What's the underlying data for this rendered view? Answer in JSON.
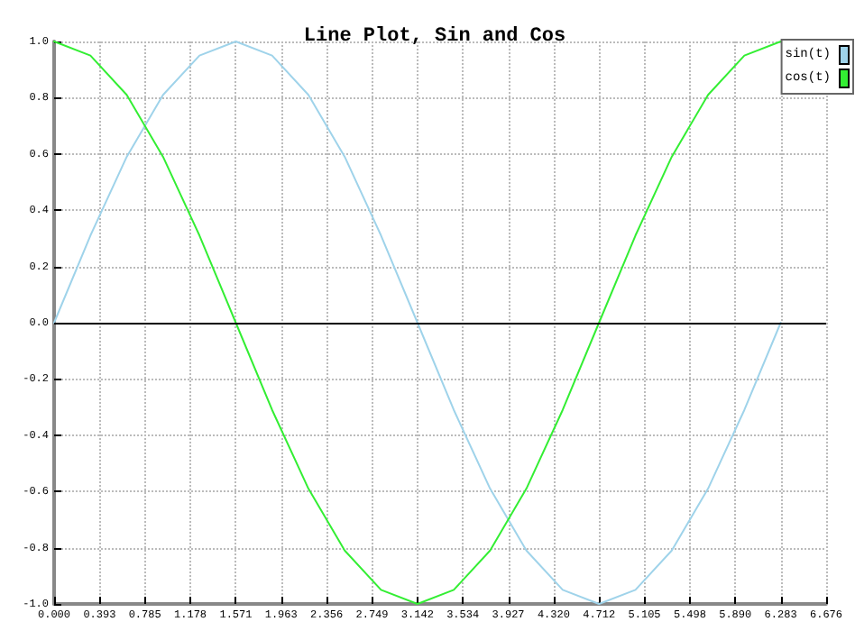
{
  "chart_data": {
    "type": "line",
    "title": "Line Plot, Sin and Cos",
    "x": [
      0,
      0.314,
      0.628,
      0.942,
      1.257,
      1.571,
      1.885,
      2.199,
      2.513,
      2.827,
      3.142,
      3.456,
      3.77,
      4.084,
      4.398,
      4.712,
      5.027,
      5.341,
      5.655,
      5.969,
      6.283
    ],
    "series": [
      {
        "name": "sin(t)",
        "color": "#9fd3ea",
        "values": [
          0,
          0.31,
          0.59,
          0.81,
          0.95,
          1,
          0.95,
          0.81,
          0.59,
          0.31,
          0,
          -0.31,
          -0.59,
          -0.81,
          -0.95,
          -1,
          -0.95,
          -0.81,
          -0.59,
          -0.31,
          0
        ]
      },
      {
        "name": "cos(t)",
        "color": "#33ee33",
        "values": [
          1,
          0.95,
          0.81,
          0.59,
          0.31,
          0,
          -0.31,
          -0.59,
          -0.81,
          -0.95,
          -1,
          -0.95,
          -0.81,
          -0.59,
          -0.31,
          0,
          0.31,
          0.59,
          0.81,
          0.95,
          1
        ]
      }
    ],
    "xlim": [
      0,
      6.676
    ],
    "xticks": [
      {
        "value": 0,
        "label": "0.000"
      },
      {
        "value": 0.393,
        "label": "0.393"
      },
      {
        "value": 0.785,
        "label": "0.785"
      },
      {
        "value": 1.178,
        "label": "1.178"
      },
      {
        "value": 1.571,
        "label": "1.571"
      },
      {
        "value": 1.963,
        "label": "1.963"
      },
      {
        "value": 2.356,
        "label": "2.356"
      },
      {
        "value": 2.749,
        "label": "2.749"
      },
      {
        "value": 3.142,
        "label": "3.142"
      },
      {
        "value": 3.534,
        "label": "3.534"
      },
      {
        "value": 3.927,
        "label": "3.927"
      },
      {
        "value": 4.32,
        "label": "4.320"
      },
      {
        "value": 4.712,
        "label": "4.712"
      },
      {
        "value": 5.105,
        "label": "5.105"
      },
      {
        "value": 5.498,
        "label": "5.498"
      },
      {
        "value": 5.89,
        "label": "5.890"
      },
      {
        "value": 6.283,
        "label": "6.283"
      },
      {
        "value": 6.676,
        "label": "6.676"
      }
    ],
    "ylim": [
      -1,
      1
    ],
    "yticks": [
      {
        "value": -1,
        "label": "-1.0"
      },
      -0.8,
      -0.6,
      -0.4,
      -0.2,
      {
        "value": 0,
        "label": "0.0"
      },
      0.2,
      0.4,
      0.6,
      0.8,
      {
        "value": 1,
        "label": "1.0"
      }
    ],
    "ref_lines": [
      {
        "axis": "y",
        "value": 0,
        "color": "#000000"
      }
    ],
    "grid": true,
    "legend": "top right",
    "marker": "none",
    "line_style": "solid"
  }
}
